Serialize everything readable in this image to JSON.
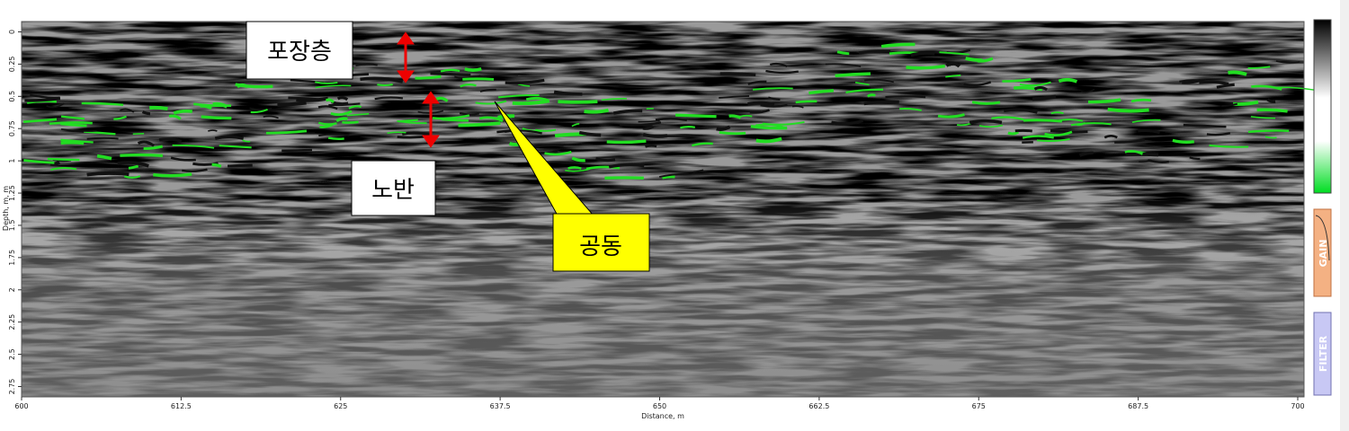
{
  "axes": {
    "x": {
      "label": "Distance, m",
      "lim": [
        600,
        700
      ],
      "ticks": [
        600,
        612.5,
        625,
        637.5,
        650,
        662.5,
        675,
        687.5,
        700
      ]
    },
    "y": {
      "label": "Depth, m, m",
      "lim": [
        -0.08,
        2.83
      ],
      "ticks": [
        0,
        0.25,
        0.5,
        0.75,
        1,
        1.25,
        1.5,
        1.75,
        2,
        2.25,
        2.5,
        2.75
      ]
    }
  },
  "annotations": {
    "pavement": "포장층",
    "subbase": "노반",
    "cavity": "공동"
  },
  "panel": {
    "gain": "GAIN",
    "filter": "FILTER"
  }
}
